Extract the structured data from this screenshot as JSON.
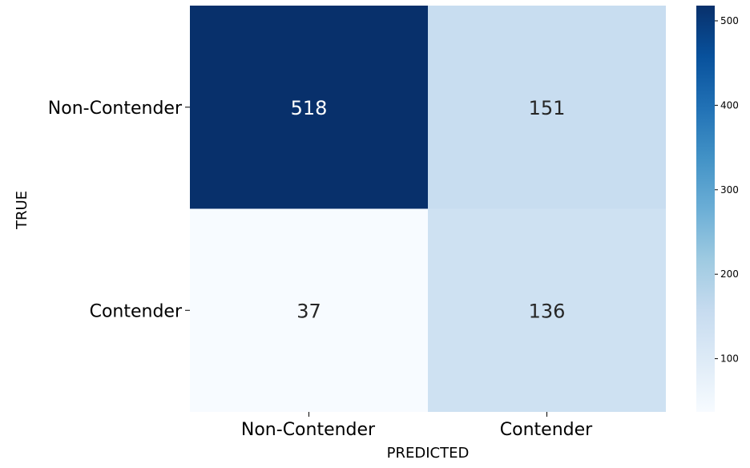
{
  "chart_data": {
    "type": "heatmap",
    "title": "",
    "xlabel": "PREDICTED",
    "ylabel": "TRUE",
    "x_categories": [
      "Non-Contender",
      "Contender"
    ],
    "y_categories": [
      "Non-Contender",
      "Contender"
    ],
    "values": [
      [
        518,
        151
      ],
      [
        37,
        136
      ]
    ],
    "colormap": "Blues",
    "colorbar": {
      "min": 37,
      "max": 518,
      "ticks": [
        100,
        200,
        300,
        400,
        500
      ],
      "tick_labels": [
        "100",
        "200",
        "300",
        "400",
        "500"
      ]
    },
    "cell_text_colors": {
      "dark": "#ffffff",
      "light": "#262626"
    },
    "grid": false
  }
}
